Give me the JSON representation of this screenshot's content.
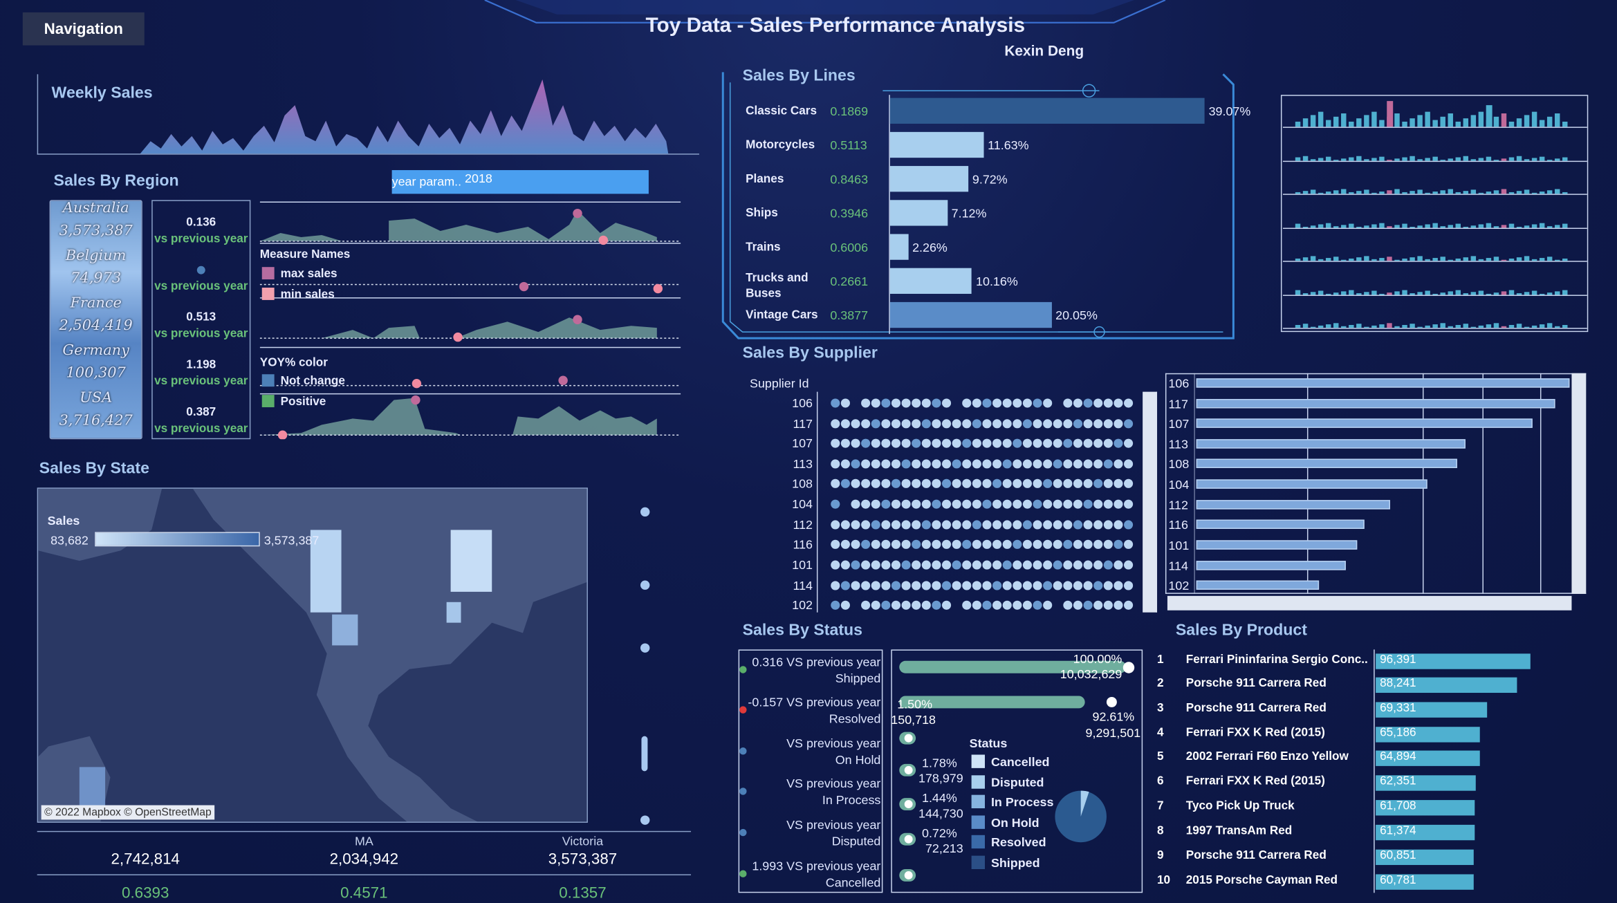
{
  "header": {
    "title": "Toy Data - Sales Performance Analysis",
    "author": "Kexin Deng",
    "nav": "Navigation"
  },
  "weekly": {
    "title": "Weekly Sales"
  },
  "region": {
    "title": "Sales By Region",
    "param_label": "year param..",
    "param_value": "2018",
    "items": [
      {
        "name": "Australia",
        "value": "3,573,387",
        "yoy": "0.136"
      },
      {
        "name": "Belgium",
        "value": "74,973",
        "yoy": ""
      },
      {
        "name": "France",
        "value": "2,504,419",
        "yoy": "0.513"
      },
      {
        "name": "Germany",
        "value": "100,307",
        "yoy": "1.198"
      },
      {
        "name": "USA",
        "value": "3,716,427",
        "yoy": "0.387"
      }
    ],
    "vs_label": "vs previous year",
    "legend1_title": "Measure Names",
    "legend1": [
      "max sales",
      "min sales"
    ],
    "legend2_title": "YOY% color",
    "legend2": [
      "Not change",
      "Positive"
    ]
  },
  "state": {
    "title": "Sales By State",
    "legend_title": "Sales",
    "legend_min": "83,682",
    "legend_max": "3,573,387",
    "attribution": "© 2022 Mapbox © OpenStreetMap",
    "bottom": [
      {
        "name": "",
        "value": "2,742,814",
        "ratio": "0.6393"
      },
      {
        "name": "MA",
        "value": "2,034,942",
        "ratio": "0.4571"
      },
      {
        "name": "Victoria",
        "value": "3,573,387",
        "ratio": "0.1357"
      }
    ]
  },
  "lines": {
    "title": "Sales By Lines",
    "items": [
      {
        "name": "Classic Cars",
        "ratio": "0.1869",
        "pct": "39.07%",
        "share": 39.07
      },
      {
        "name": "Motorcycles",
        "ratio": "0.5113",
        "pct": "11.63%",
        "share": 11.63
      },
      {
        "name": "Planes",
        "ratio": "0.8463",
        "pct": "9.72%",
        "share": 9.72
      },
      {
        "name": "Ships",
        "ratio": "0.3946",
        "pct": "7.12%",
        "share": 7.12
      },
      {
        "name": "Trains",
        "ratio": "0.6006",
        "pct": "2.26%",
        "share": 2.26
      },
      {
        "name": "Trucks and Buses",
        "ratio": "0.2661",
        "pct": "10.16%",
        "share": 10.16
      },
      {
        "name": "Vintage Cars",
        "ratio": "0.3877",
        "pct": "20.05%",
        "share": 20.05
      }
    ]
  },
  "supplier": {
    "title": "Sales By Supplier",
    "col_label": "Supplier Id",
    "ids": [
      "106",
      "117",
      "107",
      "113",
      "108",
      "104",
      "112",
      "116",
      "101",
      "114",
      "102"
    ],
    "bar_share": [
      100,
      96,
      90,
      72,
      70,
      62,
      52,
      45,
      43,
      40,
      33
    ]
  },
  "status": {
    "title": "Sales By Status",
    "yoy": [
      {
        "line1": "0.316 VS previous year",
        "line2": "Shipped"
      },
      {
        "line1": "-0.157 VS previous year",
        "line2": "Resolved"
      },
      {
        "line1": "VS previous year",
        "line2": "On Hold"
      },
      {
        "line1": "VS previous year",
        "line2": "In Process"
      },
      {
        "line1": "VS previous year",
        "line2": "Disputed"
      },
      {
        "line1": "1.993 VS previous year",
        "line2": "Cancelled"
      }
    ],
    "bars": [
      {
        "pct": "100.00%",
        "value": "10,032,629"
      },
      {
        "pct": "1.50%",
        "value": "150,718"
      },
      {
        "pct": "92.61%",
        "value": "9,291,501"
      },
      {
        "pct": "1.78%",
        "value": "178,979"
      },
      {
        "pct": "1.44%",
        "value": "144,730"
      },
      {
        "pct": "0.72%",
        "value": "72,213"
      }
    ],
    "legend_title": "Status",
    "legend": [
      "Cancelled",
      "Disputed",
      "In Process",
      "On Hold",
      "Resolved",
      "Shipped"
    ]
  },
  "product": {
    "title": "Sales By Product",
    "items": [
      {
        "rank": "1",
        "name": "Ferrari Pininfarina Sergio Conc..",
        "value": "96,391",
        "v": 96391
      },
      {
        "rank": "2",
        "name": "Porsche 911 Carrera Red",
        "value": "88,241",
        "v": 88241
      },
      {
        "rank": "3",
        "name": "Porsche 911 Carrera Red",
        "value": "69,331",
        "v": 69331
      },
      {
        "rank": "4",
        "name": "Ferrari FXX K Red (2015)",
        "value": "65,186",
        "v": 65186
      },
      {
        "rank": "5",
        "name": "2002 Ferrari F60 Enzo Yellow",
        "value": "64,894",
        "v": 64894
      },
      {
        "rank": "6",
        "name": "Ferrari FXX K Red (2015)",
        "value": "62,351",
        "v": 62351
      },
      {
        "rank": "7",
        "name": "Tyco Pick Up Truck",
        "value": "61,708",
        "v": 61708
      },
      {
        "rank": "8",
        "name": "1997 TransAm Red",
        "value": "61,374",
        "v": 61374
      },
      {
        "rank": "9",
        "name": "Porsche 911 Carrera Red",
        "value": "60,851",
        "v": 60851
      },
      {
        "rank": "10",
        "name": "2015 Porsche Cayman Red",
        "value": "60,781",
        "v": 60781
      }
    ]
  }
}
